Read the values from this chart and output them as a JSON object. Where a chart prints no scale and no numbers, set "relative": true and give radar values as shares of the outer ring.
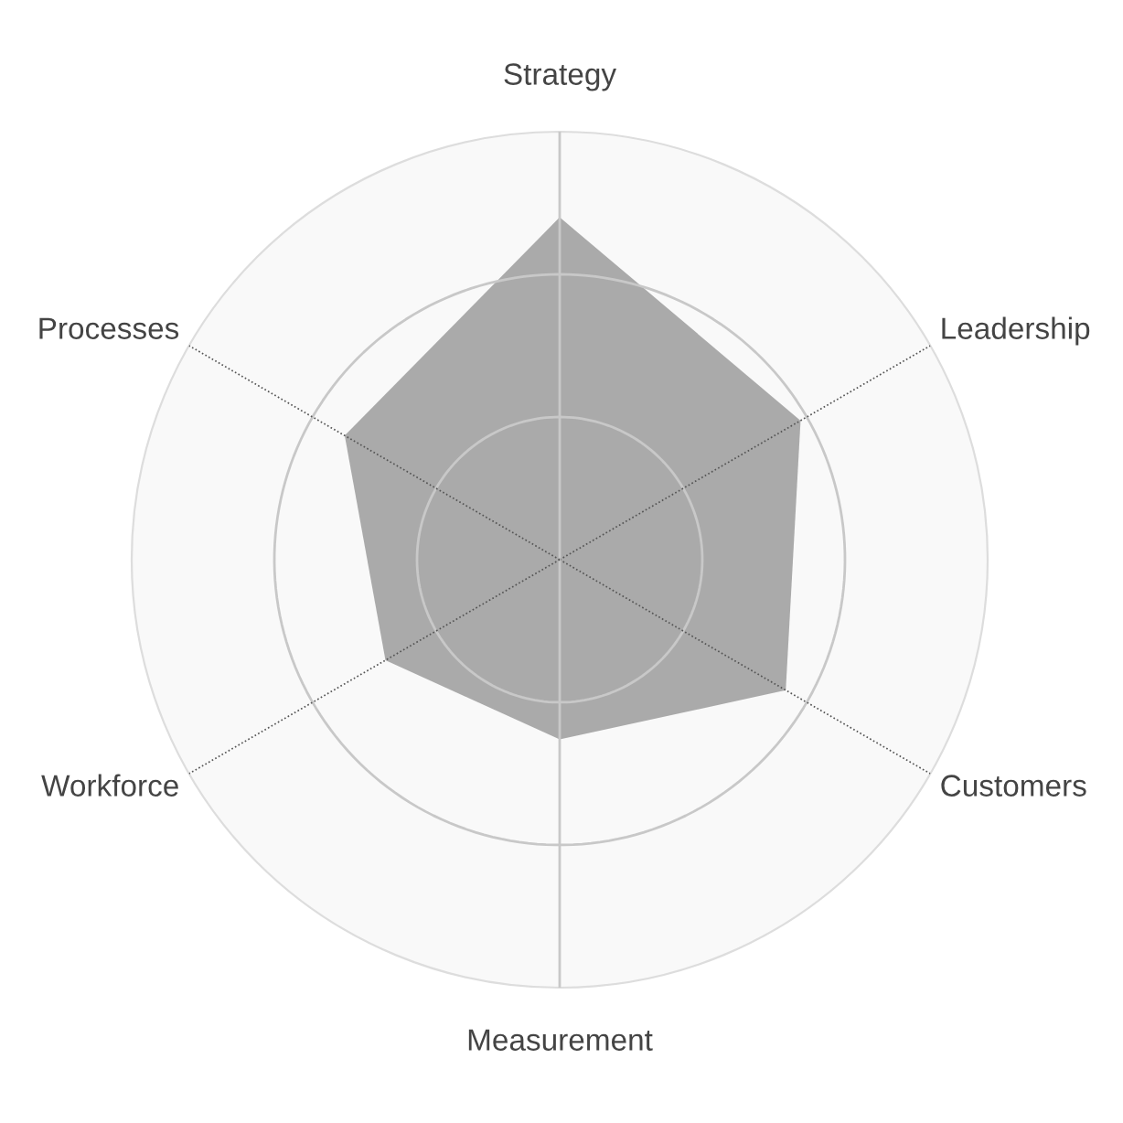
{
  "chart_data": {
    "type": "radar",
    "relative": true,
    "grid": true,
    "categories": [
      "Strategy",
      "Leadership",
      "Customers",
      "Measurement",
      "Workforce",
      "Processes"
    ],
    "series": [
      {
        "color": "#aaaaaa",
        "values": [
          0.8,
          0.65,
          0.61,
          0.42,
          0.47,
          0.58
        ]
      }
    ]
  }
}
